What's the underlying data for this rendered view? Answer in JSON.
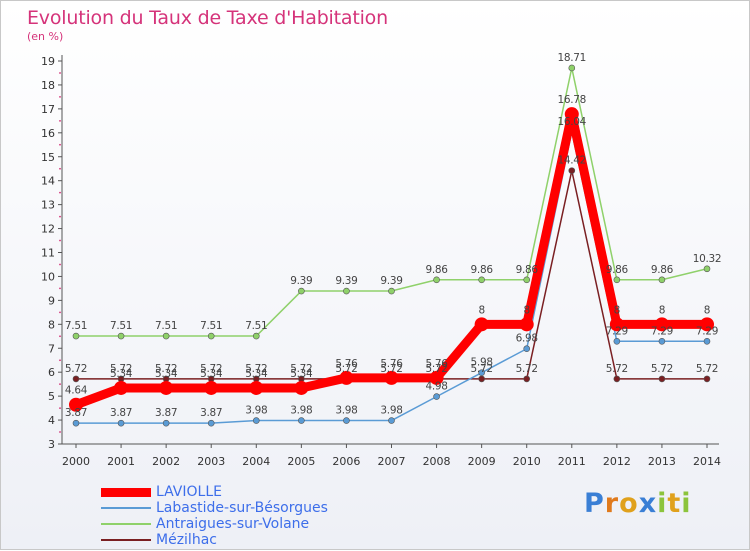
{
  "chart_data": {
    "type": "line",
    "title": "Evolution du Taux de Taxe d'Habitation",
    "subtitle": "(en %)",
    "x": [
      "2000",
      "2001",
      "2002",
      "2003",
      "2004",
      "2005",
      "2006",
      "2007",
      "2008",
      "2009",
      "2010",
      "2011",
      "2012",
      "2013",
      "2014"
    ],
    "ylim": [
      3,
      19
    ],
    "yticks": [
      3,
      4,
      5,
      6,
      7,
      8,
      9,
      10,
      11,
      12,
      13,
      14,
      15,
      16,
      17,
      18,
      19
    ],
    "grid": false,
    "legend_position": "bottom-left",
    "series": [
      {
        "name": "LAVIOLLE",
        "color": "#ff0000",
        "values": [
          4.64,
          5.34,
          5.34,
          5.34,
          5.34,
          5.34,
          5.76,
          5.76,
          5.76,
          8,
          8,
          16.78,
          8,
          8,
          8
        ],
        "labels": [
          "4.64",
          "5.34",
          "5.34",
          "5.34",
          "5.34",
          "5.34",
          "5.76",
          "5.76",
          "5.76",
          "8",
          "8",
          "16.78",
          "8",
          "8",
          "8"
        ]
      },
      {
        "name": "Labastide-sur-Bésorgues",
        "color": "#5a9bd5",
        "values": [
          3.87,
          3.87,
          3.87,
          3.87,
          3.98,
          3.98,
          3.98,
          3.98,
          4.98,
          5.98,
          6.98,
          16.04,
          7.29,
          7.29,
          7.29
        ],
        "labels": [
          "3.87",
          "3.87",
          "3.87",
          "3.87",
          "3.98",
          "3.98",
          "3.98",
          "3.98",
          "4.98",
          "5.98",
          "6.98",
          "16.04",
          "7.29",
          "7.29",
          "7.29"
        ]
      },
      {
        "name": "Antraigues-sur-Volane",
        "color": "#8fd16a",
        "values": [
          7.51,
          7.51,
          7.51,
          7.51,
          7.51,
          9.39,
          9.39,
          9.39,
          9.86,
          9.86,
          9.86,
          18.71,
          9.86,
          9.86,
          10.32
        ],
        "labels": [
          "7.51",
          "7.51",
          "7.51",
          "7.51",
          "7.51",
          "9.39",
          "9.39",
          "9.39",
          "9.86",
          "9.86",
          "9.86",
          "18.71",
          "9.86",
          "9.86",
          "10.32"
        ]
      },
      {
        "name": "Mézilhac",
        "color": "#7a1f22",
        "values": [
          5.72,
          5.72,
          5.72,
          5.72,
          5.72,
          5.72,
          5.72,
          5.72,
          5.72,
          5.72,
          5.72,
          14.42,
          5.72,
          5.72,
          5.72
        ],
        "labels": [
          "5.72",
          "5.72",
          "5.72",
          "5.72",
          "5.72",
          "5.72",
          "5.72",
          "5.72",
          "5.72",
          "5.72",
          "5.72",
          "14.42",
          "5.72",
          "5.72",
          "5.72"
        ]
      }
    ]
  },
  "logo": {
    "letters": [
      "P",
      "r",
      "o",
      "x",
      "i",
      "t",
      "i"
    ]
  },
  "colors": {
    "title": "#d5337a",
    "axis": "#555555",
    "legend_text": "#3d6eea"
  }
}
